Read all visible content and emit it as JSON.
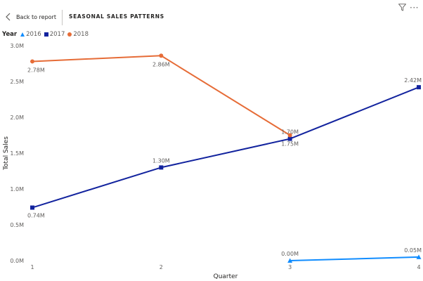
{
  "header": {
    "back_label": "Back to report",
    "page_title": "SEASONAL SALES PATTERNS",
    "filter_icon": "filter-icon",
    "more_icon": "more-options-icon",
    "more_glyph": "···"
  },
  "legend": {
    "title": "Year",
    "items": [
      {
        "label": "2016",
        "marker": "triangle",
        "color": "#118dff"
      },
      {
        "label": "2017",
        "marker": "square",
        "color": "#12239e"
      },
      {
        "label": "2018",
        "marker": "circle",
        "color": "#e66c37"
      }
    ]
  },
  "chart_data": {
    "type": "line",
    "title": "",
    "xlabel": "Quarter",
    "ylabel": "Total Sales",
    "x": [
      1,
      2,
      3,
      4
    ],
    "x_tick_labels": [
      "1",
      "2",
      "3",
      "4"
    ],
    "ylim": [
      0,
      3.0
    ],
    "y_ticks": [
      0,
      0.5,
      1.0,
      1.5,
      2.0,
      2.5,
      3.0
    ],
    "y_tick_labels": [
      "0.0M",
      "0.5M",
      "1.0M",
      "1.5M",
      "2.0M",
      "2.5M",
      "3.0M"
    ],
    "grid": false,
    "legend_position": "top-left",
    "series": [
      {
        "name": "2016",
        "color": "#118dff",
        "marker": "triangle",
        "x": [
          3,
          4
        ],
        "values": [
          0.0,
          0.05
        ],
        "labels": [
          "0.00M",
          "0.05M"
        ]
      },
      {
        "name": "2017",
        "color": "#12239e",
        "marker": "square",
        "x": [
          1,
          2,
          3,
          4
        ],
        "values": [
          0.74,
          1.3,
          1.7,
          2.42
        ],
        "labels": [
          "0.74M",
          "1.30M",
          "1.70M",
          "2.42M"
        ]
      },
      {
        "name": "2018",
        "color": "#e66c37",
        "marker": "circle",
        "x": [
          1,
          2,
          3
        ],
        "values": [
          2.78,
          2.86,
          1.75
        ],
        "labels": [
          "2.78M",
          "2.86M",
          "1.75M"
        ]
      }
    ]
  }
}
